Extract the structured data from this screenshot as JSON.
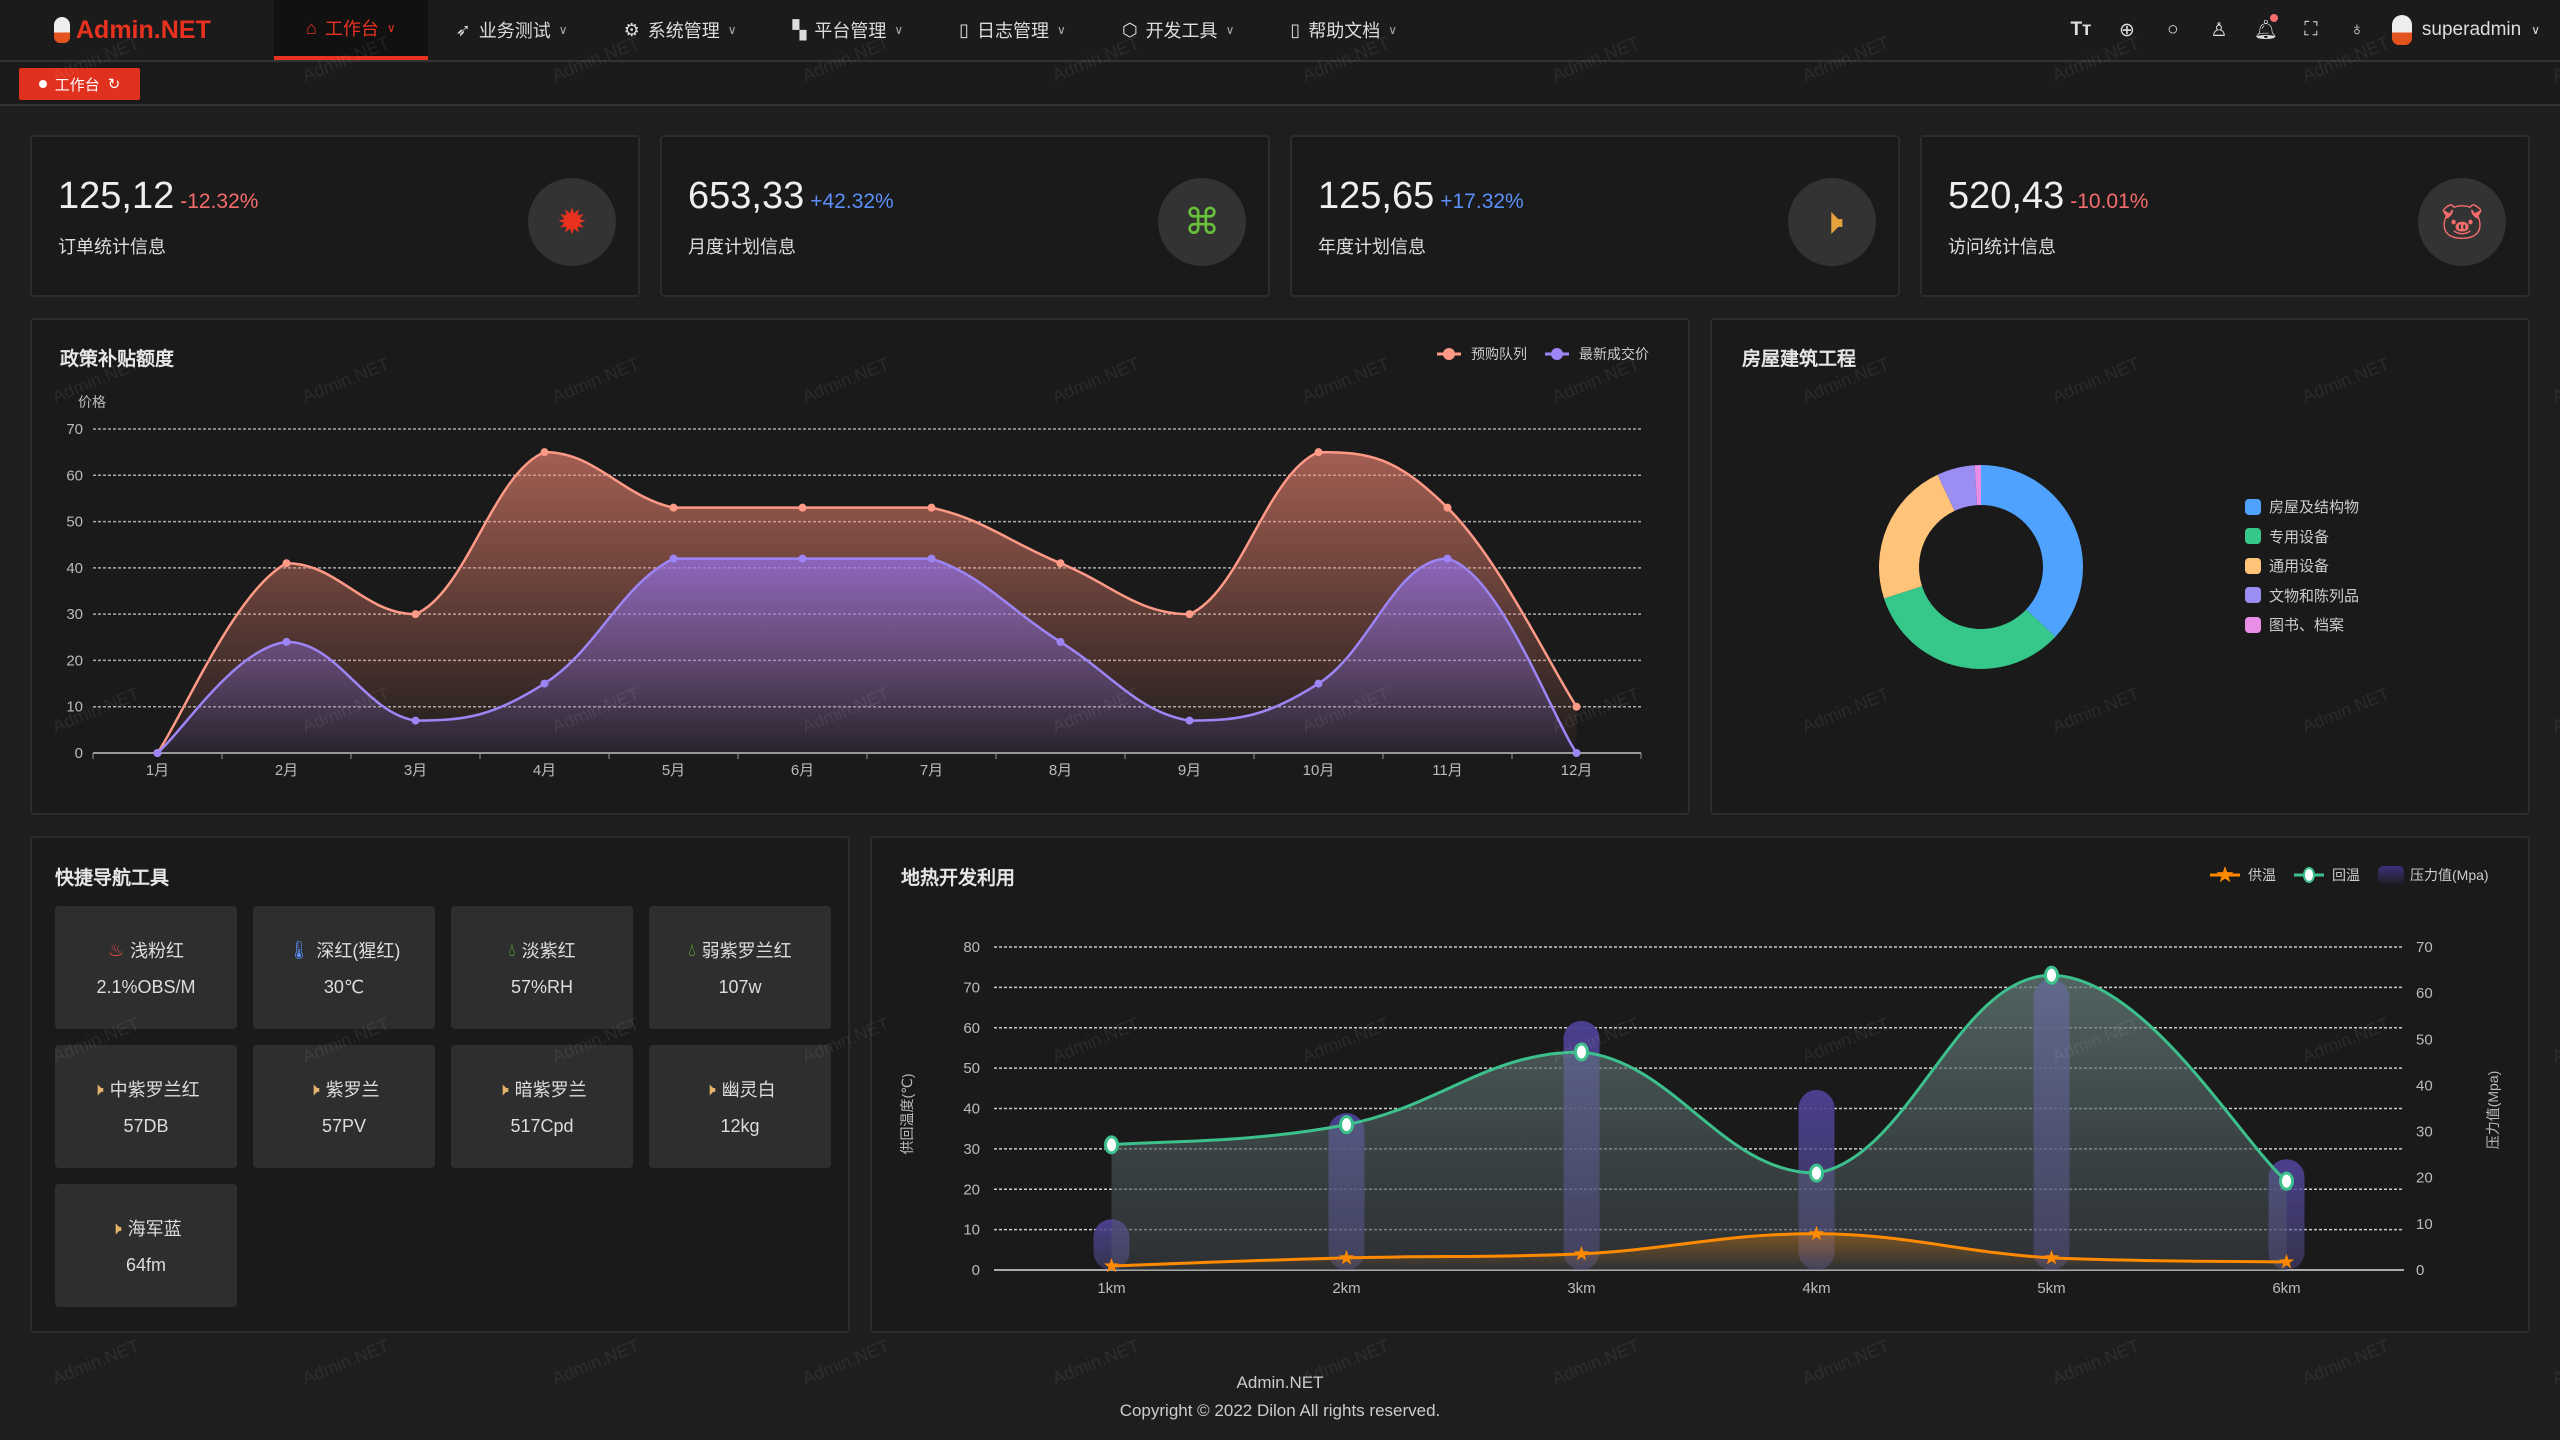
{
  "watermark": "Admin.NET",
  "header": {
    "logo": "Admin.NET",
    "nav": [
      {
        "label": "工作台",
        "icon": "home-icon",
        "active": true
      },
      {
        "label": "业务测试",
        "icon": "send-icon"
      },
      {
        "label": "系统管理",
        "icon": "gear-icon"
      },
      {
        "label": "平台管理",
        "icon": "grid-icon"
      },
      {
        "label": "日志管理",
        "icon": "document-icon"
      },
      {
        "label": "开发工具",
        "icon": "chip-icon"
      },
      {
        "label": "帮助文档",
        "icon": "book-icon"
      }
    ],
    "tools": [
      "font-size-icon",
      "language-icon",
      "search-icon",
      "theme-icon",
      "bell-icon",
      "fullscreen-icon",
      "user-icon"
    ],
    "username": "superadmin"
  },
  "tags": [
    {
      "label": "工作台",
      "active": true
    }
  ],
  "stats": [
    {
      "value": "125,12",
      "change": "-12.32%",
      "change_color": "#f56c6c",
      "label": "订单统计信息",
      "icon": "fire-icon",
      "icon_color": "#e8321f"
    },
    {
      "value": "653,33",
      "change": "+42.32%",
      "change_color": "#5b8ff9",
      "label": "月度计划信息",
      "icon": "china-map-icon",
      "icon_color": "#67c23a"
    },
    {
      "value": "125,65",
      "change": "+17.32%",
      "change_color": "#5b8ff9",
      "label": "年度计划信息",
      "icon": "speaker-icon",
      "icon_color": "#e6a23c"
    },
    {
      "value": "520,43",
      "change": "-10.01%",
      "change_color": "#f56c6c",
      "label": "访问统计信息",
      "icon": "pig-icon",
      "icon_color": "#f56c6c"
    }
  ],
  "chart_data": [
    {
      "type": "area",
      "title": "政策补贴额度",
      "ylabel": "价格",
      "categories": [
        "1月",
        "2月",
        "3月",
        "4月",
        "5月",
        "6月",
        "7月",
        "8月",
        "9月",
        "10月",
        "11月",
        "12月"
      ],
      "ylim": [
        0,
        70
      ],
      "yticks": [
        0,
        10,
        20,
        30,
        40,
        50,
        60,
        70
      ],
      "grid": true,
      "legend_position": "top-right",
      "series": [
        {
          "name": "预购队列",
          "color": "#ff9a87",
          "values": [
            0,
            41,
            30,
            65,
            53,
            53,
            53,
            41,
            30,
            65,
            53,
            10
          ]
        },
        {
          "name": "最新成交价",
          "color": "#9d85f5",
          "values": [
            0,
            24,
            7,
            15,
            42,
            42,
            42,
            24,
            7,
            15,
            42,
            0
          ]
        }
      ]
    },
    {
      "type": "pie",
      "title": "房屋建筑工程",
      "donut": true,
      "legend_position": "right",
      "slices": [
        {
          "name": "房屋及结构物",
          "value": 37,
          "color": "#4fa3ff"
        },
        {
          "name": "专用设备",
          "value": 33,
          "color": "#36c78b"
        },
        {
          "name": "通用设备",
          "value": 23,
          "color": "#ffc37a"
        },
        {
          "name": "文物和陈列品",
          "value": 6,
          "color": "#9a8ef3"
        },
        {
          "name": "图书、档案",
          "value": 1,
          "color": "#e88ee6"
        }
      ]
    },
    {
      "type": "line",
      "title": "地热开发利用",
      "categories": [
        "1km",
        "2km",
        "3km",
        "4km",
        "5km",
        "6km"
      ],
      "ylabel": "供回温度(℃)",
      "ylabel_right": "压力值(Mpa)",
      "ylim": [
        0,
        80
      ],
      "yticks": [
        0,
        10,
        20,
        30,
        40,
        50,
        60,
        70,
        80
      ],
      "ylim_right": [
        0,
        70
      ],
      "yticks_right": [
        0,
        10,
        20,
        30,
        40,
        50,
        60,
        70
      ],
      "grid": true,
      "legend_position": "top-right",
      "series": [
        {
          "name": "供温",
          "type": "line",
          "color": "#ff8a00",
          "values": [
            1,
            3,
            4,
            9,
            3,
            2
          ]
        },
        {
          "name": "回温",
          "type": "area",
          "color": "#3cc08c",
          "values": [
            31,
            36,
            54,
            24,
            73,
            22
          ]
        },
        {
          "name": "压力值(Mpa)",
          "type": "bar",
          "axis": "right",
          "color": "#3a3170",
          "values": [
            11,
            34,
            54,
            39,
            63,
            24
          ]
        }
      ]
    }
  ],
  "quicknav": {
    "title": "快捷导航工具",
    "tiles": [
      {
        "label": "浅粉红",
        "value": "2.1%OBS/M",
        "icon": "fire-hydrant-icon",
        "color": "#e64b4b"
      },
      {
        "label": "深红(猩红)",
        "value": "30℃",
        "icon": "thermometer-icon",
        "color": "#5b8ff9"
      },
      {
        "label": "淡紫红",
        "value": "57%RH",
        "icon": "water-drop-icon",
        "color": "#67c23a"
      },
      {
        "label": "弱紫罗兰红",
        "value": "107w",
        "icon": "water-drop-icon",
        "color": "#67c23a"
      },
      {
        "label": "中紫罗兰红",
        "value": "57DB",
        "icon": "speaker-icon",
        "color": "#e6b36a"
      },
      {
        "label": "紫罗兰",
        "value": "57PV",
        "icon": "speaker-icon",
        "color": "#e6b36a"
      },
      {
        "label": "暗紫罗兰",
        "value": "517Cpd",
        "icon": "speaker-icon",
        "color": "#e6b36a"
      },
      {
        "label": "幽灵白",
        "value": "12kg",
        "icon": "speaker-icon",
        "color": "#e6b36a"
      },
      {
        "label": "海军蓝",
        "value": "64fm",
        "icon": "speaker-icon",
        "color": "#e6b36a"
      }
    ]
  },
  "footer": {
    "brand": "Admin.NET",
    "copyright": "Copyright © 2022 Dilon All rights reserved."
  }
}
